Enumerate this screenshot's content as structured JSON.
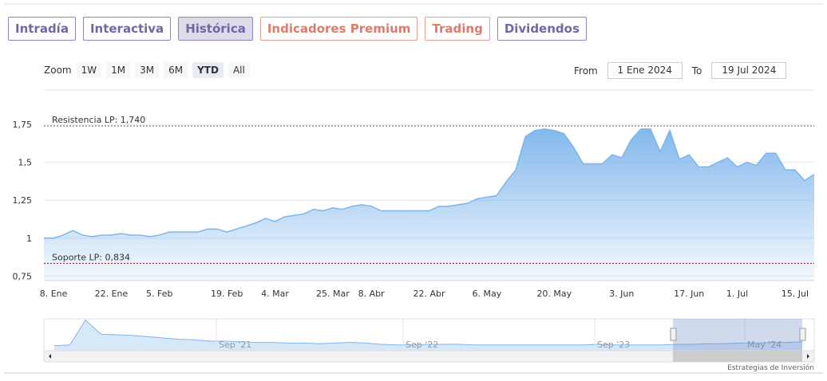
{
  "tabs": [
    {
      "label": "Intradía",
      "style": "normal"
    },
    {
      "label": "Interactiva",
      "style": "normal"
    },
    {
      "label": "Histórica",
      "style": "active"
    },
    {
      "label": "Indicadores Premium",
      "style": "premium"
    },
    {
      "label": "Trading",
      "style": "premium"
    },
    {
      "label": "Dividendos",
      "style": "normal"
    }
  ],
  "zoom": {
    "label": "Zoom",
    "buttons": [
      {
        "label": "1W",
        "active": false
      },
      {
        "label": "1M",
        "active": false
      },
      {
        "label": "3M",
        "active": false
      },
      {
        "label": "6M",
        "active": false
      },
      {
        "label": "YTD",
        "active": true
      },
      {
        "label": "All",
        "active": false
      }
    ]
  },
  "range": {
    "from_label": "From",
    "from": "1 Ene 2024",
    "to_label": "To",
    "to": "19 Jul 2024"
  },
  "credit": "Estrategias de Inversión",
  "chart_data": {
    "type": "area",
    "categories": [
      null,
      "8. Ene",
      null,
      null,
      null,
      null,
      null,
      "22. Ene",
      null,
      null,
      null,
      null,
      "5. Feb",
      null,
      null,
      null,
      null,
      null,
      null,
      "19. Feb",
      null,
      null,
      null,
      null,
      "4. Mar",
      null,
      null,
      null,
      null,
      null,
      "25. Mar",
      null,
      null,
      null,
      "8. Abr",
      null,
      null,
      null,
      null,
      null,
      "22. Abr",
      null,
      null,
      null,
      null,
      null,
      "6. May",
      null,
      null,
      null,
      null,
      null,
      null,
      "20. May",
      null,
      null,
      null,
      null,
      null,
      null,
      "3. Jun",
      null,
      null,
      null,
      null,
      null,
      null,
      "17. Jun",
      null,
      null,
      null,
      null,
      "1. Jul",
      null,
      null,
      null,
      null,
      null,
      "15. Jul",
      null,
      null
    ],
    "series": [
      {
        "color": "#7cb5ec",
        "values": [
          1.0,
          1.0,
          1.02,
          1.05,
          1.02,
          1.01,
          1.02,
          1.02,
          1.03,
          1.02,
          1.02,
          1.01,
          1.02,
          1.04,
          1.04,
          1.04,
          1.04,
          1.06,
          1.06,
          1.04,
          1.06,
          1.08,
          1.1,
          1.13,
          1.11,
          1.14,
          1.15,
          1.16,
          1.19,
          1.18,
          1.2,
          1.19,
          1.21,
          1.22,
          1.21,
          1.18,
          1.18,
          1.18,
          1.18,
          1.18,
          1.18,
          1.21,
          1.21,
          1.22,
          1.23,
          1.26,
          1.27,
          1.28,
          1.37,
          1.45,
          1.67,
          1.71,
          1.72,
          1.71,
          1.69,
          1.6,
          1.49,
          1.49,
          1.49,
          1.55,
          1.53,
          1.65,
          1.72,
          1.72,
          1.57,
          1.71,
          1.52,
          1.55,
          1.47,
          1.47,
          1.5,
          1.53,
          1.47,
          1.5,
          1.48,
          1.56,
          1.56,
          1.45,
          1.45,
          1.38,
          1.42
        ]
      }
    ],
    "ylim": [
      0.72,
      1.94
    ],
    "yticks": [
      {
        "value": 0.75,
        "label": "0,75"
      },
      {
        "value": 1,
        "label": "1"
      },
      {
        "value": 1.25,
        "label": "1,25"
      },
      {
        "value": 1.5,
        "label": "1,5"
      },
      {
        "value": 1.75,
        "label": "1,75"
      }
    ],
    "grid": true,
    "plot_lines": [
      {
        "label": "Resistencia LP: 1,740",
        "value": 1.74,
        "color": "#2e6b2e"
      },
      {
        "label": "Soporte LP: 0,834",
        "value": 0.834,
        "color": "#7a1a1a"
      }
    ],
    "navigator": {
      "labels": [
        "Sep '21",
        "Sep '22",
        "Sep '23",
        "May '24"
      ],
      "ylim": [
        0.5,
        3
      ],
      "values": [
        0.9,
        0.95,
        2.9,
        1.8,
        1.75,
        1.7,
        1.6,
        1.5,
        1.4,
        1.35,
        1.25,
        1.25,
        1.2,
        1.15,
        1.15,
        1.1,
        1.1,
        1.05,
        1.1,
        1.15,
        1.1,
        1.0,
        0.95,
        0.95,
        1.0,
        1.0,
        1.0,
        0.95,
        0.95,
        0.95,
        0.95,
        0.95,
        0.95,
        0.95,
        0.95,
        1.0,
        0.95,
        0.95,
        0.95,
        0.95,
        1.0,
        1.0,
        1.05,
        1.05,
        1.1,
        1.1,
        1.15,
        1.15,
        1.2
      ]
    }
  }
}
